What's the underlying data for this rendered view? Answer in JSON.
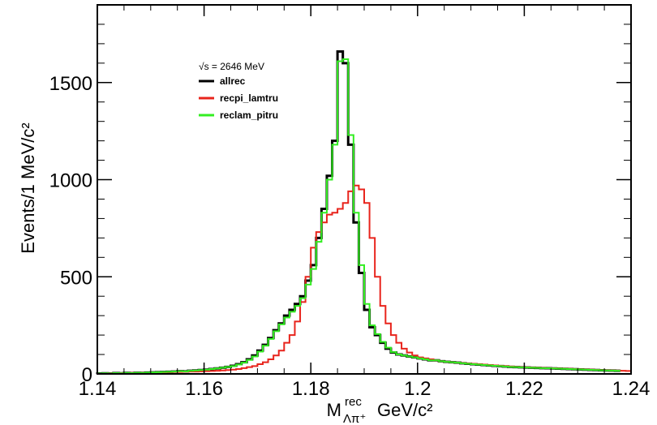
{
  "chart_data": {
    "type": "line",
    "step": true,
    "xlabel_main": "M",
    "xlabel_sup": "rec",
    "xlabel_sub": "Λπ⁺",
    "xlabel_unit": "GeV/c²",
    "ylabel": "Events/1 MeV/c²",
    "xlim": [
      1.14,
      1.24
    ],
    "ylim": [
      0,
      1900
    ],
    "x_ticks": [
      1.14,
      1.16,
      1.18,
      1.2,
      1.22,
      1.24
    ],
    "x_tick_labels": [
      "1.14",
      "1.16",
      "1.18",
      "1.2",
      "1.22",
      "1.24"
    ],
    "y_ticks": [
      0,
      500,
      1000,
      1500
    ],
    "y_tick_labels": [
      "0",
      "500",
      "1000",
      "1500"
    ],
    "legend_header": "√s = 2646 MeV",
    "legend_position": "top-left",
    "bin_edges": [
      1.14,
      1.141,
      1.142,
      1.143,
      1.144,
      1.145,
      1.146,
      1.147,
      1.148,
      1.149,
      1.15,
      1.151,
      1.152,
      1.153,
      1.154,
      1.155,
      1.156,
      1.157,
      1.158,
      1.159,
      1.16,
      1.161,
      1.162,
      1.163,
      1.164,
      1.165,
      1.166,
      1.167,
      1.168,
      1.169,
      1.17,
      1.171,
      1.172,
      1.173,
      1.174,
      1.175,
      1.176,
      1.177,
      1.178,
      1.179,
      1.18,
      1.181,
      1.182,
      1.183,
      1.184,
      1.185,
      1.186,
      1.187,
      1.188,
      1.189,
      1.19,
      1.191,
      1.192,
      1.193,
      1.194,
      1.195,
      1.196,
      1.197,
      1.198,
      1.199,
      1.2,
      1.201,
      1.202,
      1.203,
      1.204,
      1.205,
      1.206,
      1.207,
      1.208,
      1.209,
      1.21,
      1.211,
      1.212,
      1.213,
      1.214,
      1.215,
      1.216,
      1.217,
      1.218,
      1.219,
      1.22,
      1.221,
      1.222,
      1.223,
      1.224,
      1.225,
      1.226,
      1.227,
      1.228,
      1.229,
      1.23,
      1.231,
      1.232,
      1.233,
      1.234,
      1.235,
      1.236,
      1.237,
      1.238,
      1.239,
      1.24
    ],
    "series": [
      {
        "name": "allrec",
        "color": "#000000",
        "values": [
          2,
          3,
          2,
          4,
          3,
          5,
          4,
          6,
          5,
          7,
          8,
          9,
          10,
          11,
          12,
          14,
          13,
          16,
          18,
          20,
          22,
          25,
          28,
          32,
          36,
          42,
          50,
          60,
          75,
          95,
          120,
          150,
          185,
          225,
          260,
          300,
          330,
          360,
          400,
          480,
          560,
          700,
          850,
          1020,
          1200,
          1660,
          1600,
          1180,
          780,
          520,
          330,
          240,
          200,
          160,
          130,
          110,
          100,
          95,
          90,
          85,
          80,
          75,
          70,
          70,
          65,
          62,
          60,
          58,
          55,
          52,
          50,
          48,
          46,
          44,
          42,
          40,
          38,
          36,
          35,
          34,
          33,
          32,
          31,
          30,
          29,
          28,
          27,
          26,
          25,
          24,
          23,
          22,
          21,
          20,
          19,
          18,
          17,
          16
        ]
      },
      {
        "name": "recpi_lamtru",
        "color": "#e8241c",
        "values": [
          2,
          2,
          3,
          3,
          4,
          4,
          5,
          5,
          6,
          6,
          7,
          8,
          8,
          9,
          10,
          10,
          11,
          12,
          12,
          13,
          14,
          15,
          16,
          18,
          20,
          22,
          25,
          30,
          35,
          40,
          50,
          60,
          75,
          95,
          120,
          160,
          200,
          270,
          370,
          500,
          650,
          730,
          780,
          820,
          830,
          850,
          880,
          940,
          970,
          950,
          880,
          700,
          500,
          350,
          260,
          200,
          160,
          130,
          110,
          95,
          85,
          80,
          75,
          70,
          65,
          62,
          60,
          58,
          56,
          54,
          52,
          50,
          48,
          46,
          44,
          42,
          40,
          38,
          36,
          35,
          34,
          33,
          32,
          31,
          30,
          29,
          28,
          27,
          26,
          25,
          24,
          23,
          22,
          21,
          20,
          19,
          18,
          17,
          16,
          15
        ]
      },
      {
        "name": "reclam_pitru",
        "color": "#33ee22",
        "values": [
          2,
          3,
          2,
          4,
          3,
          5,
          4,
          6,
          5,
          7,
          8,
          9,
          10,
          11,
          12,
          14,
          13,
          16,
          18,
          20,
          22,
          25,
          28,
          32,
          36,
          40,
          48,
          58,
          72,
          90,
          115,
          145,
          180,
          220,
          255,
          290,
          320,
          350,
          390,
          460,
          540,
          680,
          830,
          1000,
          1180,
          1610,
          1620,
          1230,
          830,
          560,
          360,
          250,
          205,
          165,
          135,
          112,
          100,
          95,
          90,
          85,
          80,
          75,
          70,
          70,
          65,
          62,
          60,
          58,
          55,
          52,
          50,
          48,
          46,
          44,
          42,
          40,
          38,
          36,
          35,
          34,
          33,
          32,
          31,
          30,
          29,
          28,
          27,
          26,
          25,
          24,
          23,
          22,
          21,
          20,
          19,
          18,
          17,
          16
        ]
      }
    ]
  }
}
